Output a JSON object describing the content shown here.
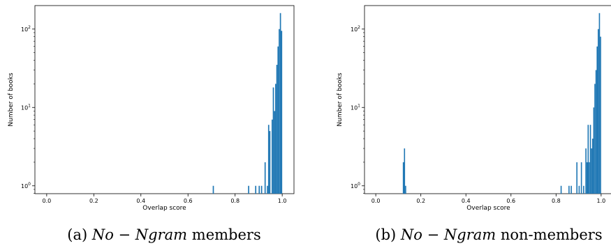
{
  "chart_data": [
    {
      "type": "bar",
      "panel": "a",
      "caption": {
        "prefix": "(a) ",
        "math": "No − Ngram",
        "suffix": " members"
      },
      "xlabel": "Overlap score",
      "ylabel": "Number of books",
      "xlim": [
        -0.05,
        1.05
      ],
      "ylim_log10": [
        -0.1,
        2.3
      ],
      "yscale": "log",
      "bar_color": "#1f77b4",
      "bin_width": 0.005,
      "xticks": [
        {
          "value": 0.0,
          "label": "0.0"
        },
        {
          "value": 0.2,
          "label": "0.2"
        },
        {
          "value": 0.4,
          "label": "0.4"
        },
        {
          "value": 0.6,
          "label": "0.6"
        },
        {
          "value": 0.8,
          "label": "0.8"
        },
        {
          "value": 1.0,
          "label": "1.0"
        }
      ],
      "yticks": [
        {
          "value": 1,
          "base": "10",
          "exp": "0"
        },
        {
          "value": 10,
          "base": "10",
          "exp": "1"
        },
        {
          "value": 100,
          "base": "10",
          "exp": "2"
        }
      ],
      "bins": [
        {
          "x": 0.705,
          "count": 1
        },
        {
          "x": 0.855,
          "count": 1
        },
        {
          "x": 0.885,
          "count": 1
        },
        {
          "x": 0.9,
          "count": 1
        },
        {
          "x": 0.91,
          "count": 1
        },
        {
          "x": 0.925,
          "count": 2
        },
        {
          "x": 0.935,
          "count": 1
        },
        {
          "x": 0.94,
          "count": 6
        },
        {
          "x": 0.945,
          "count": 5
        },
        {
          "x": 0.955,
          "count": 7
        },
        {
          "x": 0.96,
          "count": 18
        },
        {
          "x": 0.965,
          "count": 9
        },
        {
          "x": 0.97,
          "count": 20
        },
        {
          "x": 0.975,
          "count": 35
        },
        {
          "x": 0.98,
          "count": 60
        },
        {
          "x": 0.985,
          "count": 100
        },
        {
          "x": 0.99,
          "count": 160
        },
        {
          "x": 0.995,
          "count": 95
        }
      ]
    },
    {
      "type": "bar",
      "panel": "b",
      "caption": {
        "prefix": "(b) ",
        "math": "No − Ngram",
        "suffix": " non-members"
      },
      "xlabel": "Overlap score",
      "ylabel": "Number of books",
      "xlim": [
        -0.05,
        1.05
      ],
      "ylim_log10": [
        -0.1,
        2.3
      ],
      "yscale": "log",
      "bar_color": "#1f77b4",
      "bin_width": 0.005,
      "xticks": [
        {
          "value": 0.0,
          "label": "0.0"
        },
        {
          "value": 0.2,
          "label": "0.2"
        },
        {
          "value": 0.4,
          "label": "0.4"
        },
        {
          "value": 0.6,
          "label": "0.6"
        },
        {
          "value": 0.8,
          "label": "0.8"
        },
        {
          "value": 1.0,
          "label": "1.0"
        }
      ],
      "yticks": [
        {
          "value": 1,
          "base": "10",
          "exp": "0"
        },
        {
          "value": 10,
          "base": "10",
          "exp": "1"
        },
        {
          "value": 100,
          "base": "10",
          "exp": "2"
        }
      ],
      "bins": [
        {
          "x": 0.12,
          "count": 2
        },
        {
          "x": 0.125,
          "count": 3
        },
        {
          "x": 0.13,
          "count": 1
        },
        {
          "x": 0.82,
          "count": 1
        },
        {
          "x": 0.855,
          "count": 1
        },
        {
          "x": 0.865,
          "count": 1
        },
        {
          "x": 0.89,
          "count": 2
        },
        {
          "x": 0.9,
          "count": 1
        },
        {
          "x": 0.91,
          "count": 2
        },
        {
          "x": 0.92,
          "count": 1
        },
        {
          "x": 0.93,
          "count": 3
        },
        {
          "x": 0.935,
          "count": 2
        },
        {
          "x": 0.94,
          "count": 6
        },
        {
          "x": 0.945,
          "count": 2
        },
        {
          "x": 0.95,
          "count": 6
        },
        {
          "x": 0.955,
          "count": 3
        },
        {
          "x": 0.96,
          "count": 4
        },
        {
          "x": 0.965,
          "count": 10
        },
        {
          "x": 0.97,
          "count": 20
        },
        {
          "x": 0.975,
          "count": 30
        },
        {
          "x": 0.98,
          "count": 60
        },
        {
          "x": 0.985,
          "count": 100
        },
        {
          "x": 0.99,
          "count": 160
        },
        {
          "x": 0.995,
          "count": 80
        }
      ]
    }
  ]
}
